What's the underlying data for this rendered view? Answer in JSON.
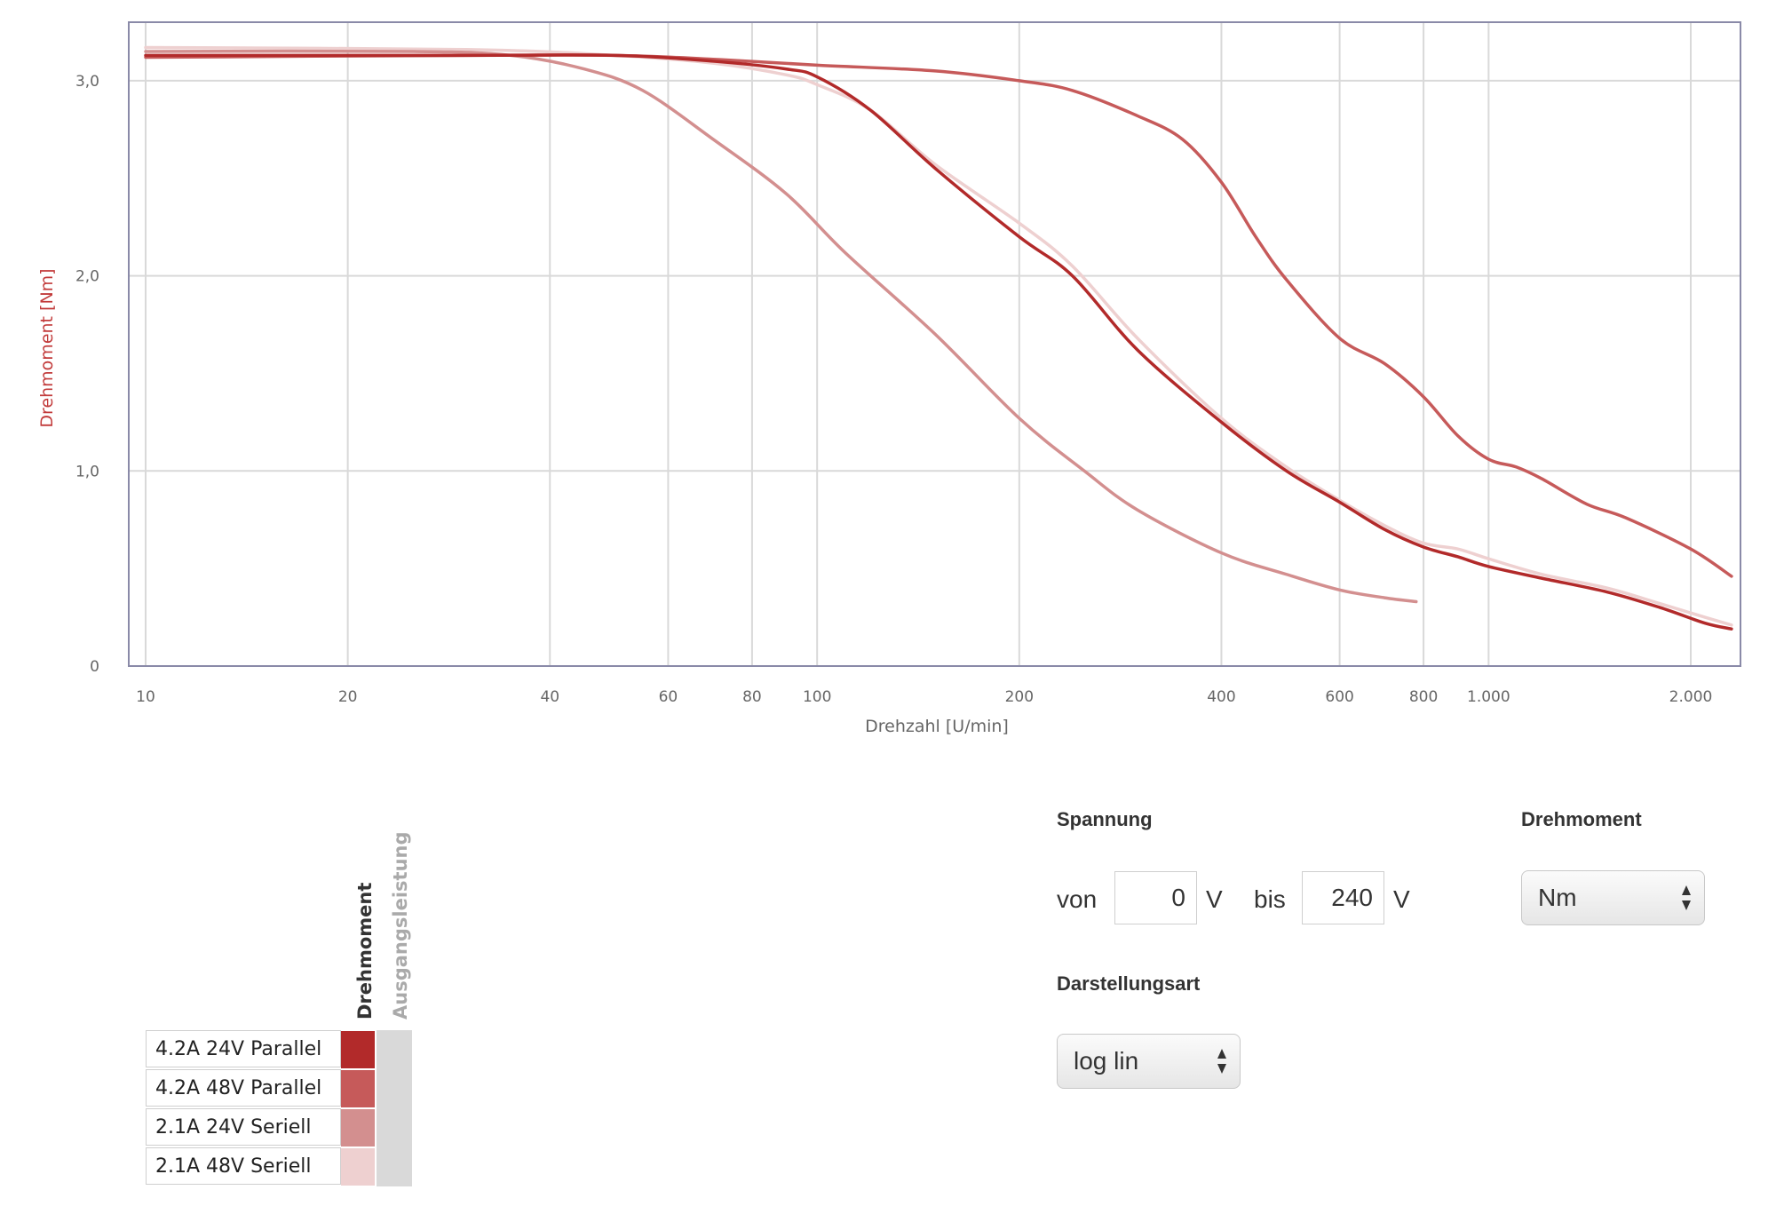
{
  "chart_data": {
    "type": "line",
    "xlabel": "Drehzahl [U/min]",
    "ylabel": "Drehmoment [Nm]",
    "xscale": "log",
    "xlim": [
      10,
      2200
    ],
    "ylim": [
      0,
      3.3
    ],
    "x_ticks": [
      10,
      20,
      40,
      60,
      80,
      100,
      200,
      400,
      600,
      800,
      1000,
      2000
    ],
    "x_tick_labels": [
      "10",
      "20",
      "40",
      "60",
      "80",
      "100",
      "200",
      "400",
      "600",
      "800",
      "1.000",
      "2.000"
    ],
    "y_ticks": [
      0,
      1,
      2,
      3
    ],
    "y_tick_labels": [
      "0",
      "1,0",
      "2,0",
      "3,0"
    ],
    "grid": true,
    "series": [
      {
        "name": "4.2A 24V Parallel",
        "color": "#b22a2a",
        "points": [
          [
            10,
            3.13
          ],
          [
            30,
            3.13
          ],
          [
            50,
            3.13
          ],
          [
            70,
            3.1
          ],
          [
            90,
            3.06
          ],
          [
            100,
            3.02
          ],
          [
            120,
            2.85
          ],
          [
            150,
            2.55
          ],
          [
            200,
            2.2
          ],
          [
            240,
            2.0
          ],
          [
            300,
            1.62
          ],
          [
            400,
            1.25
          ],
          [
            500,
            1.0
          ],
          [
            600,
            0.84
          ],
          [
            700,
            0.7
          ],
          [
            800,
            0.61
          ],
          [
            900,
            0.56
          ],
          [
            1000,
            0.51
          ],
          [
            1200,
            0.45
          ],
          [
            1500,
            0.38
          ],
          [
            1800,
            0.3
          ],
          [
            2100,
            0.22
          ],
          [
            2300,
            0.19
          ]
        ]
      },
      {
        "name": "4.2A 48V Parallel",
        "color": "#c65a5a",
        "points": [
          [
            10,
            3.12
          ],
          [
            30,
            3.13
          ],
          [
            50,
            3.13
          ],
          [
            70,
            3.11
          ],
          [
            100,
            3.08
          ],
          [
            150,
            3.05
          ],
          [
            200,
            3.0
          ],
          [
            240,
            2.95
          ],
          [
            300,
            2.82
          ],
          [
            350,
            2.7
          ],
          [
            400,
            2.48
          ],
          [
            450,
            2.2
          ],
          [
            500,
            1.98
          ],
          [
            600,
            1.68
          ],
          [
            700,
            1.55
          ],
          [
            800,
            1.38
          ],
          [
            900,
            1.18
          ],
          [
            1000,
            1.06
          ],
          [
            1100,
            1.02
          ],
          [
            1200,
            0.96
          ],
          [
            1400,
            0.83
          ],
          [
            1600,
            0.76
          ],
          [
            2000,
            0.6
          ],
          [
            2300,
            0.46
          ]
        ]
      },
      {
        "name": "2.1A 24V Seriell",
        "color": "#d38f8f",
        "points": [
          [
            10,
            3.15
          ],
          [
            25,
            3.15
          ],
          [
            35,
            3.13
          ],
          [
            45,
            3.06
          ],
          [
            55,
            2.95
          ],
          [
            70,
            2.7
          ],
          [
            90,
            2.42
          ],
          [
            110,
            2.12
          ],
          [
            150,
            1.7
          ],
          [
            200,
            1.27
          ],
          [
            250,
            1.0
          ],
          [
            300,
            0.8
          ],
          [
            400,
            0.58
          ],
          [
            500,
            0.47
          ],
          [
            600,
            0.39
          ],
          [
            700,
            0.35
          ],
          [
            780,
            0.33
          ]
        ]
      },
      {
        "name": "2.1A 48V Seriell",
        "color": "#eed0d0",
        "points": [
          [
            10,
            3.17
          ],
          [
            30,
            3.16
          ],
          [
            50,
            3.13
          ],
          [
            70,
            3.09
          ],
          [
            90,
            3.03
          ],
          [
            100,
            2.98
          ],
          [
            120,
            2.85
          ],
          [
            150,
            2.57
          ],
          [
            200,
            2.27
          ],
          [
            240,
            2.05
          ],
          [
            300,
            1.68
          ],
          [
            400,
            1.27
          ],
          [
            500,
            1.02
          ],
          [
            600,
            0.85
          ],
          [
            700,
            0.72
          ],
          [
            800,
            0.63
          ],
          [
            900,
            0.6
          ],
          [
            1000,
            0.55
          ],
          [
            1200,
            0.47
          ],
          [
            1500,
            0.4
          ],
          [
            1800,
            0.32
          ],
          [
            2100,
            0.25
          ],
          [
            2300,
            0.21
          ]
        ]
      }
    ]
  },
  "legend": {
    "header_active": "Drehmoment",
    "header_inactive": "Ausgangsleistung",
    "items": [
      {
        "label": "4.2A 24V Parallel",
        "color": "#b22a2a"
      },
      {
        "label": "4.2A 48V Parallel",
        "color": "#c65a5a"
      },
      {
        "label": "2.1A 24V Seriell",
        "color": "#d38f8f"
      },
      {
        "label": "2.1A 48V Seriell",
        "color": "#eed0d0"
      }
    ]
  },
  "controls": {
    "spannung_title": "Spannung",
    "von_label": "von",
    "von_value": "0",
    "von_unit": "V",
    "bis_label": "bis",
    "bis_value": "240",
    "bis_unit": "V",
    "drehmoment_title": "Drehmoment",
    "unit_select": "Nm",
    "darstellung_title": "Darstellungsart",
    "mode_select": "log lin"
  },
  "colors": {
    "axis_title_y": "#c23b3b",
    "axis_title_x": "#666666",
    "plot_border": "#8a8aa8",
    "grid": "#d9d9d9"
  }
}
